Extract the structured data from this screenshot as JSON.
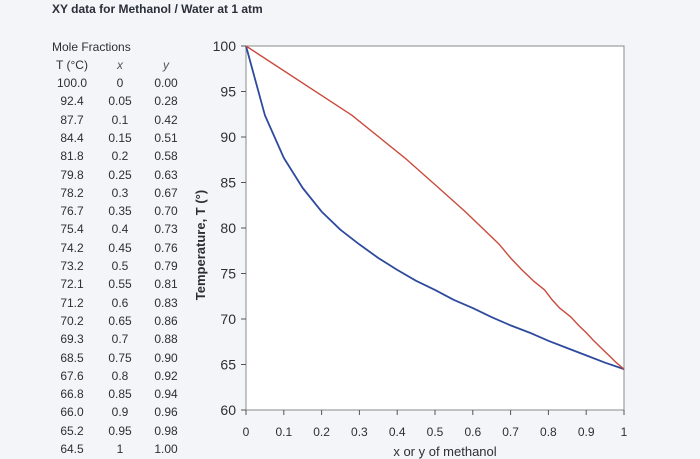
{
  "title": "XY data for Methanol / Water at 1 atm",
  "table": {
    "caption": "Mole Fractions",
    "headers": [
      "T (°C)",
      "x",
      "y"
    ],
    "rows": [
      [
        "100.0",
        "0",
        "0.00"
      ],
      [
        "92.4",
        "0.05",
        "0.28"
      ],
      [
        "87.7",
        "0.1",
        "0.42"
      ],
      [
        "84.4",
        "0.15",
        "0.51"
      ],
      [
        "81.8",
        "0.2",
        "0.58"
      ],
      [
        "79.8",
        "0.25",
        "0.63"
      ],
      [
        "78.2",
        "0.3",
        "0.67"
      ],
      [
        "76.7",
        "0.35",
        "0.70"
      ],
      [
        "75.4",
        "0.4",
        "0.73"
      ],
      [
        "74.2",
        "0.45",
        "0.76"
      ],
      [
        "73.2",
        "0.5",
        "0.79"
      ],
      [
        "72.1",
        "0.55",
        "0.81"
      ],
      [
        "71.2",
        "0.6",
        "0.83"
      ],
      [
        "70.2",
        "0.65",
        "0.86"
      ],
      [
        "69.3",
        "0.7",
        "0.88"
      ],
      [
        "68.5",
        "0.75",
        "0.90"
      ],
      [
        "67.6",
        "0.8",
        "0.92"
      ],
      [
        "66.8",
        "0.85",
        "0.94"
      ],
      [
        "66.0",
        "0.9",
        "0.96"
      ],
      [
        "65.2",
        "0.95",
        "0.98"
      ],
      [
        "64.5",
        "1",
        "1.00"
      ]
    ]
  },
  "chart_data": {
    "type": "line",
    "xlabel": "x or y of methanol",
    "ylabel": "Temperature, T (°)",
    "xlim": [
      0,
      1
    ],
    "ylim": [
      60,
      100
    ],
    "xticks": [
      "0",
      "0.1",
      "0.2",
      "0.3",
      "0.4",
      "0.5",
      "0.6",
      "0.7",
      "0.8",
      "0.9",
      "1"
    ],
    "yticks": [
      "60",
      "65",
      "70",
      "75",
      "80",
      "85",
      "90",
      "95",
      "100"
    ],
    "grid": false,
    "T": [
      100.0,
      92.4,
      87.7,
      84.4,
      81.8,
      79.8,
      78.2,
      76.7,
      75.4,
      74.2,
      73.2,
      72.1,
      71.2,
      70.2,
      69.3,
      68.5,
      67.6,
      66.8,
      66.0,
      65.2,
      64.5
    ],
    "series": [
      {
        "x": [
          0,
          0.05,
          0.1,
          0.15,
          0.2,
          0.25,
          0.3,
          0.35,
          0.4,
          0.45,
          0.5,
          0.55,
          0.6,
          0.65,
          0.7,
          0.75,
          0.8,
          0.85,
          0.9,
          0.95,
          1
        ],
        "color": "#2e4a9e"
      },
      {
        "x": [
          0.0,
          0.28,
          0.42,
          0.51,
          0.58,
          0.63,
          0.67,
          0.7,
          0.73,
          0.76,
          0.79,
          0.81,
          0.83,
          0.86,
          0.88,
          0.9,
          0.92,
          0.94,
          0.96,
          0.98,
          1.0
        ],
        "color": "#c94b3d"
      }
    ],
    "plot_background": "#ffffff",
    "axis_color": "#555555"
  }
}
